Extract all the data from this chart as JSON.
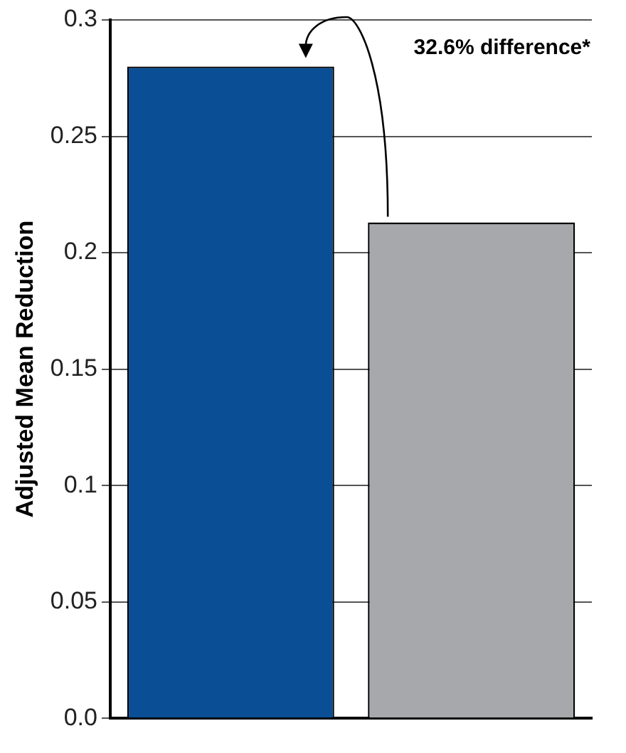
{
  "chart_data": {
    "type": "bar",
    "ylabel": "Adjusted Mean Reduction",
    "categories": [
      null,
      null
    ],
    "values": [
      0.28,
      0.213
    ],
    "colors": [
      "#0a4f96",
      "#a7a8ab"
    ],
    "ylim": [
      0,
      0.3
    ],
    "yticks": [
      {
        "value": 0,
        "label": "0.0"
      },
      0.05,
      0.1,
      0.15,
      0.2,
      0.25,
      0.3
    ],
    "grid": "y",
    "legend": false,
    "annotations": [
      "32.6% difference*"
    ]
  }
}
